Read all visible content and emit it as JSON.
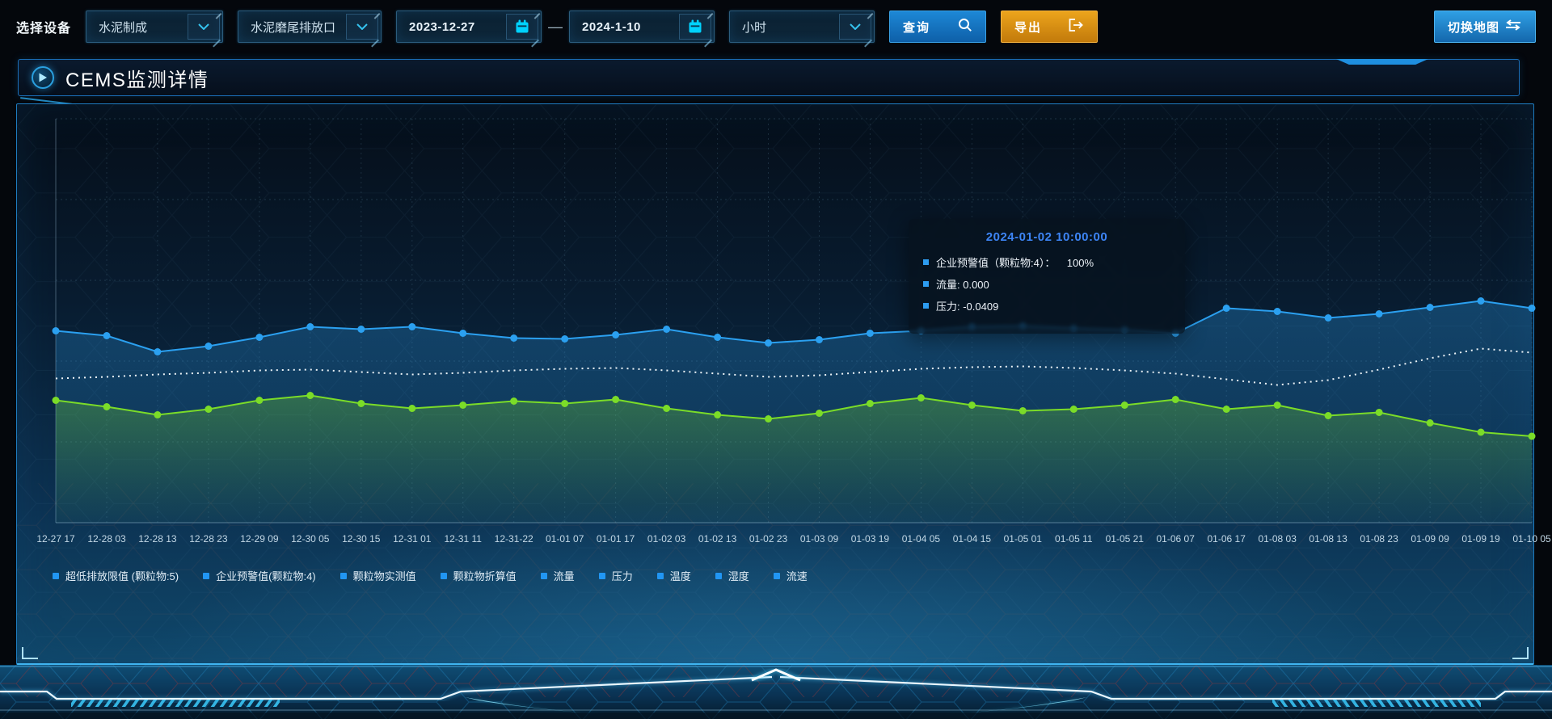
{
  "page": {
    "app_title": "CEMS监测详情"
  },
  "toolbar": {
    "device_label": "选择设备",
    "device_type": {
      "value": "水泥制成"
    },
    "outlet": {
      "value": "水泥磨尾排放口"
    },
    "date_from": {
      "value": "2023-12-27"
    },
    "range_separator": "—",
    "date_to": {
      "value": "2024-1-10"
    },
    "interval": {
      "value": "小时"
    },
    "query": {
      "label": "查询"
    },
    "export": {
      "label": "导出"
    },
    "switch_map": {
      "label": "切换地图"
    },
    "icons": {
      "query": "search-icon",
      "export": "export-arrow-icon",
      "switch_map": "swap-arrows-icon",
      "date": "calendar-icon",
      "select": "chevron-down-icon"
    }
  },
  "panel": {
    "title": "CEMS监测详情",
    "icon": "play-icon"
  },
  "tooltip": {
    "title": "2024-01-02 10:00:00",
    "items": [
      {
        "text": "企业预警值（颗粒物:4）：    100%"
      },
      {
        "text": "流量: 0.000"
      },
      {
        "text": "压力: -0.0409"
      }
    ],
    "marker_color": "#2d9cf0",
    "title_color": "#3d85f5"
  },
  "chart_data": {
    "type": "line",
    "title": "CEMS监测详情",
    "x_categories": [
      "12-27 17",
      "12-28 03",
      "12-28 13",
      "12-28 23",
      "12-29 09",
      "12-30 05",
      "12-30 15",
      "12-31 01",
      "12-31 11",
      "12-31-22",
      "01-01 07",
      "01-01 17",
      "01-02 03",
      "01-02 13",
      "01-02 23",
      "01-03 09",
      "01-03 19",
      "01-04 05",
      "01-04 15",
      "01-05 01",
      "01-05 11",
      "01-05 21",
      "01-06 07",
      "01-06 17",
      "01-08 03",
      "01-08 13",
      "01-08 23",
      "01-09 09",
      "01-09 19",
      "01-10 05"
    ],
    "y_axis": {
      "labels_visible": false,
      "assumed_range": [
        0,
        100
      ],
      "gridlines": 5
    },
    "grid_style": "dashed",
    "series": [
      {
        "name": "企业预警值(颗粒物:4)",
        "color": "#2ba0f0",
        "line_style": "solid",
        "markers": true,
        "area": true,
        "values": [
          47.5,
          46.3,
          42.3,
          43.7,
          45.9,
          48.5,
          47.9,
          48.5,
          46.9,
          45.7,
          45.5,
          46.5,
          47.9,
          45.9,
          44.5,
          45.3,
          46.9,
          47.5,
          48.5,
          48.7,
          48.1,
          47.7,
          46.9,
          53.1,
          52.3,
          50.7,
          51.7,
          53.3,
          54.9,
          53.1
        ]
      },
      {
        "name": "颗粒物折算值",
        "color": "#edf4f8",
        "line_style": "dotted",
        "markers": false,
        "area": false,
        "values": [
          35.7,
          36.1,
          36.7,
          37.1,
          37.7,
          37.9,
          37.3,
          36.7,
          37.1,
          37.7,
          38.1,
          38.3,
          37.7,
          36.9,
          36.1,
          36.5,
          37.3,
          38.1,
          38.5,
          38.7,
          38.3,
          37.7,
          36.9,
          35.5,
          34.1,
          35.3,
          37.9,
          40.7,
          43.1,
          42.1
        ]
      },
      {
        "name": "颗粒物实测值",
        "color": "#7bdc28",
        "line_style": "solid",
        "markers": true,
        "area": true,
        "values": [
          30.3,
          28.7,
          26.7,
          28.1,
          30.3,
          31.5,
          29.5,
          28.3,
          29.1,
          30.1,
          29.5,
          30.5,
          28.3,
          26.7,
          25.7,
          27.1,
          29.5,
          30.9,
          29.1,
          27.7,
          28.1,
          29.1,
          30.5,
          28.1,
          29.1,
          26.5,
          27.3,
          24.7,
          22.4,
          21.4
        ]
      }
    ],
    "legend": {
      "position": "bottom-left",
      "marker_color": "#2196f3",
      "items": [
        "超低排放限值 (颗粒物:5)",
        "企业预警值(颗粒物:4)",
        "颗粒物实测值",
        "颗粒物折算值",
        "流量",
        "压力",
        "温度",
        "湿度",
        "流速"
      ]
    }
  }
}
